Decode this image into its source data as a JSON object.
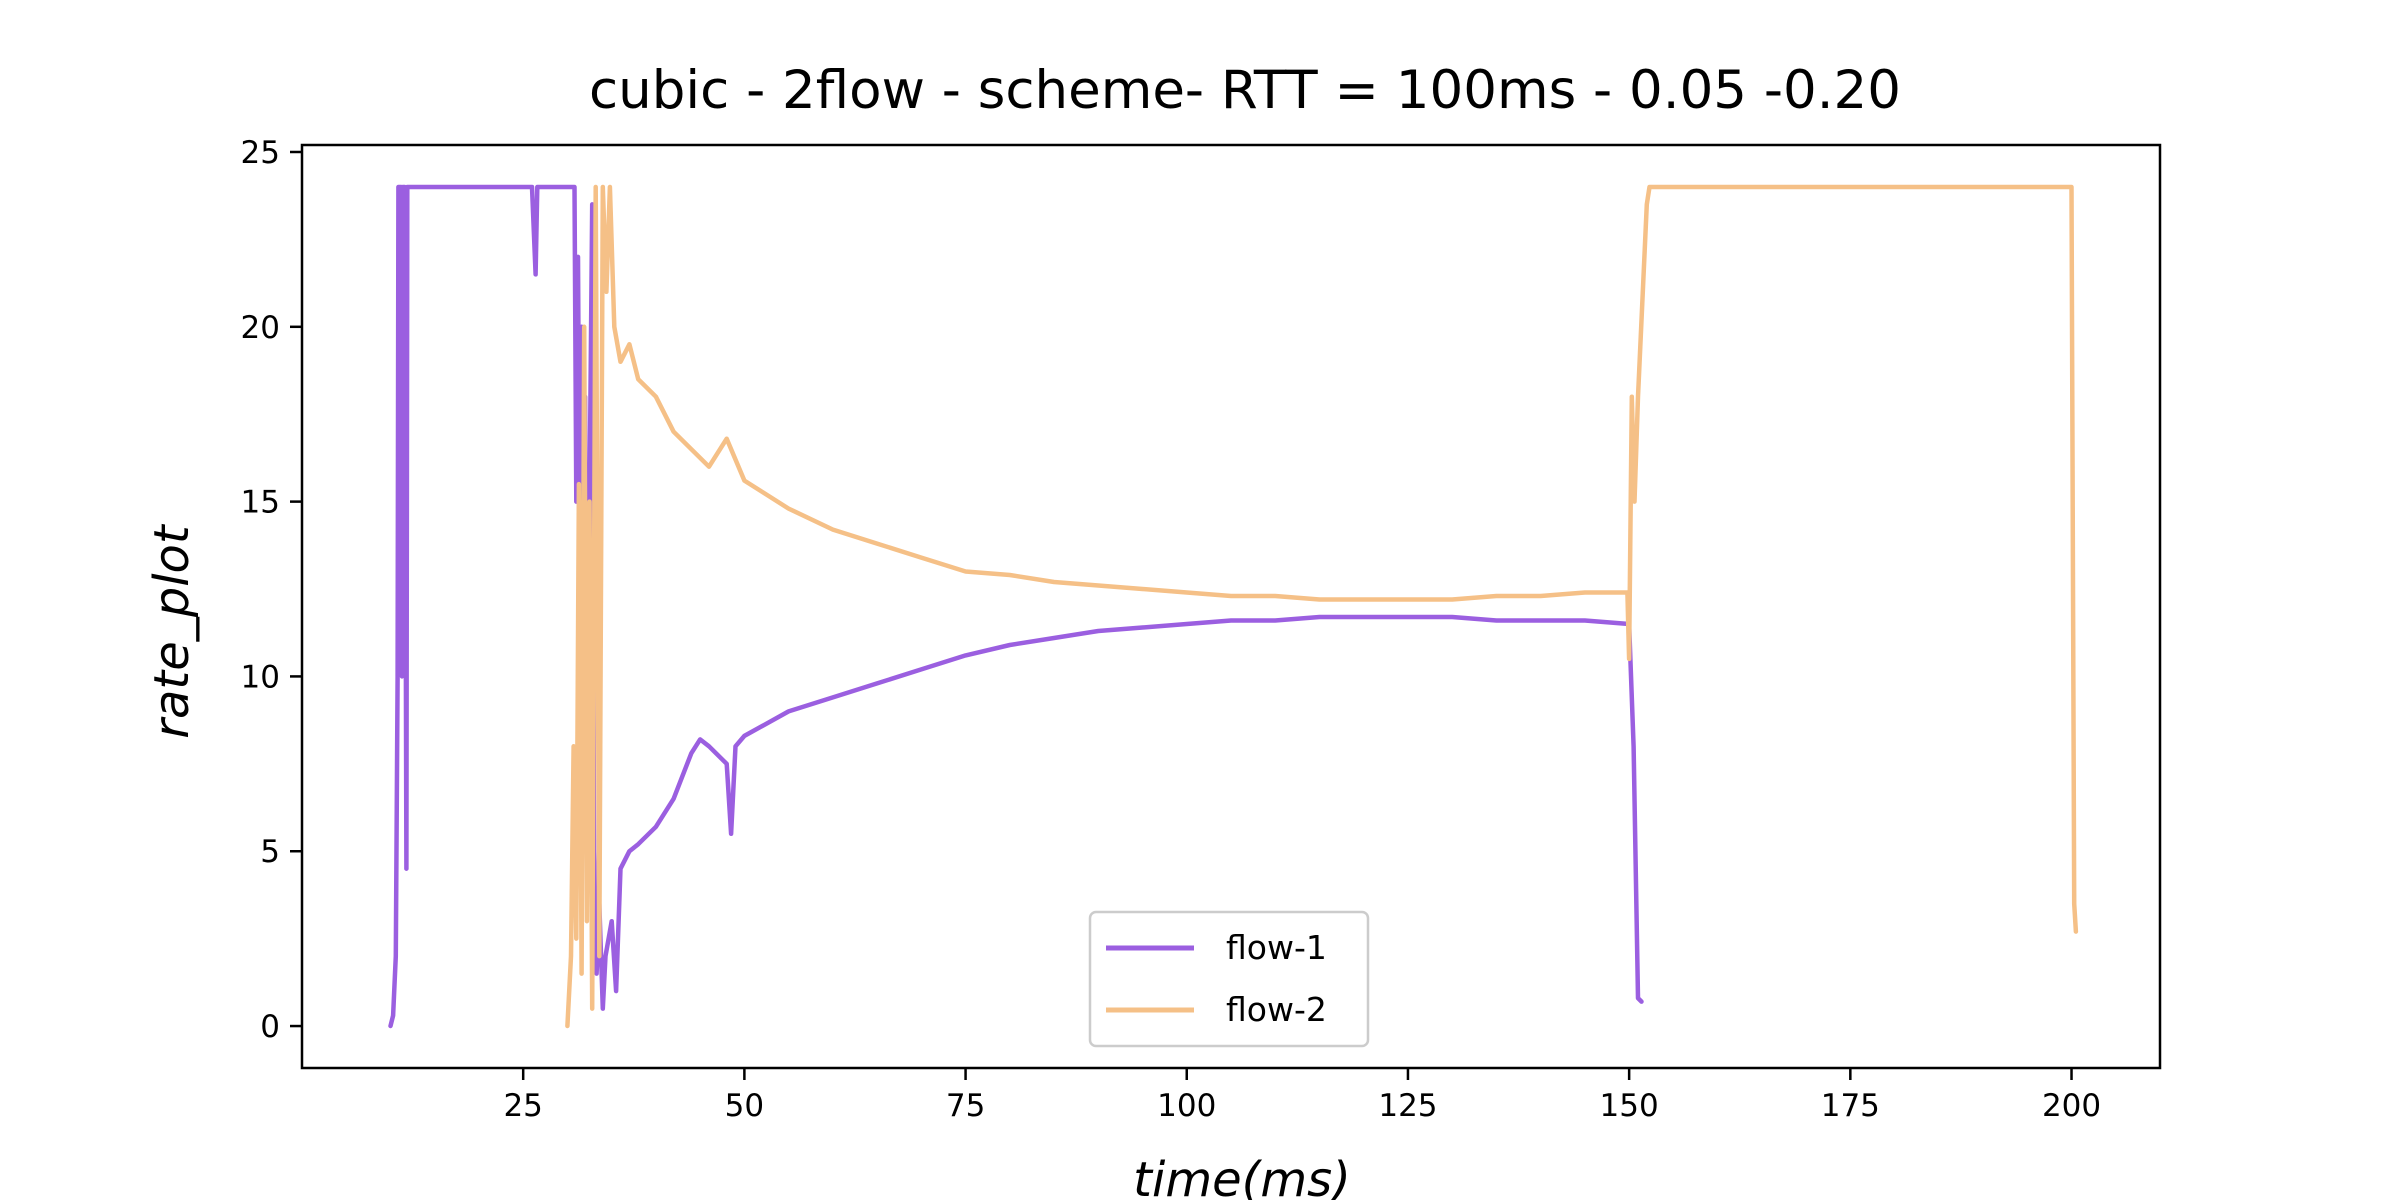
{
  "chart_data": {
    "type": "line",
    "title": "cubic - 2flow - scheme- RTT = 100ms - 0.05 -0.20",
    "xlabel": "time(ms)",
    "ylabel": "rate_plot",
    "xlim": [
      0,
      210
    ],
    "ylim": [
      -1.2,
      25.2
    ],
    "xticks": [
      25,
      50,
      75,
      100,
      125,
      150,
      175,
      200
    ],
    "yticks": [
      0,
      5,
      10,
      15,
      20,
      25
    ],
    "grid": false,
    "legend_position": "bottom-center",
    "series": [
      {
        "name": "flow-1",
        "color": "#9b5fe0",
        "points": [
          [
            10.0,
            0.0
          ],
          [
            10.3,
            0.3
          ],
          [
            10.6,
            2.0
          ],
          [
            10.8,
            10.0
          ],
          [
            10.9,
            24.0
          ],
          [
            11.2,
            24.0
          ],
          [
            11.3,
            10.0
          ],
          [
            11.4,
            24.0
          ],
          [
            11.6,
            24.0
          ],
          [
            11.8,
            4.5
          ],
          [
            11.9,
            24.0
          ],
          [
            26.0,
            24.0
          ],
          [
            26.4,
            21.5
          ],
          [
            26.6,
            24.0
          ],
          [
            30.8,
            24.0
          ],
          [
            31.0,
            15.0
          ],
          [
            31.2,
            22.0
          ],
          [
            31.4,
            13.0
          ],
          [
            31.6,
            20.0
          ],
          [
            31.8,
            10.0
          ],
          [
            32.0,
            18.0
          ],
          [
            32.2,
            4.0
          ],
          [
            32.5,
            15.0
          ],
          [
            32.8,
            23.5
          ],
          [
            33.0,
            5.0
          ],
          [
            33.3,
            1.5
          ],
          [
            33.6,
            3.5
          ],
          [
            34.0,
            0.5
          ],
          [
            34.3,
            2.0
          ],
          [
            35.0,
            3.0
          ],
          [
            35.5,
            1.0
          ],
          [
            36.0,
            4.5
          ],
          [
            37.0,
            5.0
          ],
          [
            38.0,
            5.2
          ],
          [
            40.0,
            5.7
          ],
          [
            42.0,
            6.5
          ],
          [
            44.0,
            7.8
          ],
          [
            45.0,
            8.2
          ],
          [
            46.0,
            8.0
          ],
          [
            48.0,
            7.5
          ],
          [
            48.5,
            5.5
          ],
          [
            49.0,
            8.0
          ],
          [
            50.0,
            8.3
          ],
          [
            55.0,
            9.0
          ],
          [
            60.0,
            9.4
          ],
          [
            65.0,
            9.8
          ],
          [
            70.0,
            10.2
          ],
          [
            75.0,
            10.6
          ],
          [
            80.0,
            10.9
          ],
          [
            85.0,
            11.1
          ],
          [
            90.0,
            11.3
          ],
          [
            95.0,
            11.4
          ],
          [
            100.0,
            11.5
          ],
          [
            105.0,
            11.6
          ],
          [
            110.0,
            11.6
          ],
          [
            115.0,
            11.7
          ],
          [
            120.0,
            11.7
          ],
          [
            125.0,
            11.7
          ],
          [
            130.0,
            11.7
          ],
          [
            135.0,
            11.6
          ],
          [
            140.0,
            11.6
          ],
          [
            145.0,
            11.6
          ],
          [
            150.0,
            11.5
          ],
          [
            150.5,
            8.0
          ],
          [
            151.0,
            0.8
          ],
          [
            151.4,
            0.7
          ]
        ]
      },
      {
        "name": "flow-2",
        "color": "#f5c087",
        "points": [
          [
            30.0,
            0.0
          ],
          [
            30.4,
            2.0
          ],
          [
            30.7,
            8.0
          ],
          [
            31.0,
            2.5
          ],
          [
            31.3,
            15.5
          ],
          [
            31.6,
            1.5
          ],
          [
            31.9,
            20.0
          ],
          [
            32.2,
            3.0
          ],
          [
            32.5,
            15.0
          ],
          [
            32.8,
            0.5
          ],
          [
            33.2,
            24.0
          ],
          [
            33.6,
            2.0
          ],
          [
            34.0,
            24.0
          ],
          [
            34.4,
            21.0
          ],
          [
            34.8,
            24.0
          ],
          [
            35.3,
            20.0
          ],
          [
            36.0,
            19.0
          ],
          [
            37.0,
            19.5
          ],
          [
            38.0,
            18.5
          ],
          [
            40.0,
            18.0
          ],
          [
            42.0,
            17.0
          ],
          [
            44.0,
            16.5
          ],
          [
            46.0,
            16.0
          ],
          [
            48.0,
            16.8
          ],
          [
            50.0,
            15.6
          ],
          [
            55.0,
            14.8
          ],
          [
            60.0,
            14.2
          ],
          [
            65.0,
            13.8
          ],
          [
            70.0,
            13.4
          ],
          [
            75.0,
            13.0
          ],
          [
            80.0,
            12.9
          ],
          [
            85.0,
            12.7
          ],
          [
            90.0,
            12.6
          ],
          [
            95.0,
            12.5
          ],
          [
            100.0,
            12.4
          ],
          [
            105.0,
            12.3
          ],
          [
            110.0,
            12.3
          ],
          [
            115.0,
            12.2
          ],
          [
            120.0,
            12.2
          ],
          [
            125.0,
            12.2
          ],
          [
            130.0,
            12.2
          ],
          [
            135.0,
            12.3
          ],
          [
            140.0,
            12.3
          ],
          [
            145.0,
            12.4
          ],
          [
            149.8,
            12.4
          ],
          [
            150.0,
            10.5
          ],
          [
            150.3,
            18.0
          ],
          [
            150.6,
            15.0
          ],
          [
            151.0,
            18.0
          ],
          [
            152.0,
            23.5
          ],
          [
            152.3,
            24.0
          ],
          [
            200.0,
            24.0
          ],
          [
            200.3,
            3.5
          ],
          [
            200.5,
            2.7
          ]
        ]
      }
    ]
  }
}
